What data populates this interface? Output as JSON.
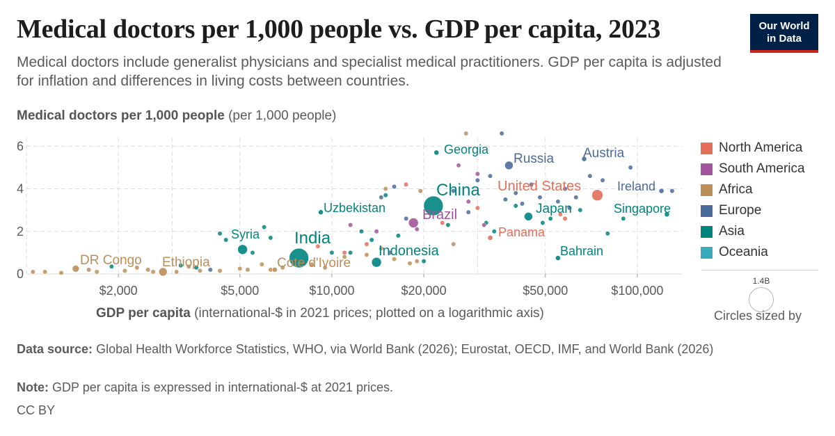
{
  "header": {
    "title": "Medical doctors per 1,000 people vs. GDP per capita, 2023",
    "subtitle": "Medical doctors include generalist physicians and specialist medical practitioners. GDP per capita is adjusted for inflation and differences in living costs between countries.",
    "logo_line1": "Our World",
    "logo_line2": "in Data"
  },
  "footer": {
    "source_label": "Data source:",
    "source_text": "Global Health Workforce Statistics, WHO, via World Bank (2026); Eurostat, OECD, IMF, and World Bank (2026)",
    "note_label": "Note:",
    "note_text": "GDP per capita is expressed in international-$ at 2021 prices.",
    "license": "CC BY"
  },
  "size_legend": {
    "value_label": "1.4B",
    "caption": "Circles sized by"
  },
  "colors": {
    "North America": "#e56e5a",
    "South America": "#a2559c",
    "Africa": "#bc8e5a",
    "Europe": "#4c6a9c",
    "Asia": "#00847e",
    "Oceania": "#38aaba",
    "grid": "#dddddd"
  },
  "chart_data": {
    "type": "scatter",
    "title": "Medical doctors per 1,000 people vs. GDP per capita, 2023",
    "ylabel_bold": "Medical doctors per 1,000 people",
    "ylabel_unit": "(per 1,000 people)",
    "xlabel_bold": "GDP per capita",
    "xlabel_rest": "(international-$ in 2021 prices; plotted on a logarithmic axis)",
    "x_scale": "log",
    "xlim": [
      1000,
      140000
    ],
    "ylim": [
      0,
      6.4
    ],
    "x_ticks": [
      {
        "value": 2000,
        "label": "$2,000"
      },
      {
        "value": 5000,
        "label": "$5,000"
      },
      {
        "value": 10000,
        "label": "$10,000"
      },
      {
        "value": 20000,
        "label": "$20,000"
      },
      {
        "value": 50000,
        "label": "$50,000"
      },
      {
        "value": 100000,
        "label": "$100,000"
      }
    ],
    "y_ticks": [
      0,
      2,
      4,
      6
    ],
    "grid": true,
    "legend_position": "right",
    "legend": [
      "North America",
      "South America",
      "Africa",
      "Europe",
      "Asia",
      "Oceania"
    ],
    "labeled_points": [
      {
        "name": "Georgia",
        "region": "Asia",
        "x": 22000,
        "y": 5.7
      },
      {
        "name": "Russia",
        "region": "Europe",
        "x": 38000,
        "y": 5.1
      },
      {
        "name": "Austria",
        "region": "Europe",
        "x": 67000,
        "y": 5.4
      },
      {
        "name": "Ireland",
        "region": "Europe",
        "x": 120000,
        "y": 3.9
      },
      {
        "name": "China",
        "region": "Asia",
        "x": 21500,
        "y": 3.2
      },
      {
        "name": "United States",
        "region": "North America",
        "x": 74000,
        "y": 3.7
      },
      {
        "name": "Uzbekistan",
        "region": "Asia",
        "x": 9200,
        "y": 2.9
      },
      {
        "name": "Brazil",
        "region": "South America",
        "x": 18500,
        "y": 2.4
      },
      {
        "name": "Japan",
        "region": "Asia",
        "x": 44000,
        "y": 2.7
      },
      {
        "name": "Singapore",
        "region": "Asia",
        "x": 125000,
        "y": 2.8
      },
      {
        "name": "Panama",
        "region": "North America",
        "x": 33000,
        "y": 1.7
      },
      {
        "name": "Syria",
        "region": "Asia",
        "x": 5100,
        "y": 1.15
      },
      {
        "name": "India",
        "region": "Asia",
        "x": 7800,
        "y": 0.75
      },
      {
        "name": "Indonesia",
        "region": "Asia",
        "x": 14000,
        "y": 0.55
      },
      {
        "name": "Bahrain",
        "region": "Asia",
        "x": 55000,
        "y": 0.75
      },
      {
        "name": "DR Congo",
        "region": "Africa",
        "x": 1450,
        "y": 0.25
      },
      {
        "name": "Ethiopia",
        "region": "Africa",
        "x": 2800,
        "y": 0.1
      },
      {
        "name": "Cote d'Ivoire",
        "region": "Africa",
        "x": 6500,
        "y": 0.2
      }
    ],
    "other_points": [
      {
        "region": "Africa",
        "x": 1050,
        "y": 0.1
      },
      {
        "region": "Africa",
        "x": 1150,
        "y": 0.1
      },
      {
        "region": "Africa",
        "x": 1300,
        "y": 0.05
      },
      {
        "region": "Africa",
        "x": 1600,
        "y": 0.2
      },
      {
        "region": "Africa",
        "x": 1700,
        "y": 0.1
      },
      {
        "region": "Africa",
        "x": 2100,
        "y": 0.15
      },
      {
        "region": "Africa",
        "x": 2300,
        "y": 0.3
      },
      {
        "region": "Africa",
        "x": 2500,
        "y": 0.2
      },
      {
        "region": "Africa",
        "x": 2600,
        "y": 0.1
      },
      {
        "region": "Africa",
        "x": 3100,
        "y": 0.1
      },
      {
        "region": "Africa",
        "x": 3400,
        "y": 0.35
      },
      {
        "region": "Africa",
        "x": 3700,
        "y": 0.15
      },
      {
        "region": "Africa",
        "x": 4300,
        "y": 0.15
      },
      {
        "region": "Africa",
        "x": 5000,
        "y": 0.25
      },
      {
        "region": "Africa",
        "x": 5300,
        "y": 0.2
      },
      {
        "region": "Africa",
        "x": 5900,
        "y": 0.45
      },
      {
        "region": "Africa",
        "x": 6300,
        "y": 0.2
      },
      {
        "region": "Africa",
        "x": 6900,
        "y": 0.3
      },
      {
        "region": "Africa",
        "x": 7600,
        "y": 0.6
      },
      {
        "region": "Africa",
        "x": 8600,
        "y": 0.45
      },
      {
        "region": "Africa",
        "x": 9500,
        "y": 0.3
      },
      {
        "region": "Africa",
        "x": 11000,
        "y": 0.8
      },
      {
        "region": "Africa",
        "x": 13000,
        "y": 0.9
      },
      {
        "region": "Africa",
        "x": 14500,
        "y": 1.2
      },
      {
        "region": "Africa",
        "x": 16000,
        "y": 0.7
      },
      {
        "region": "Africa",
        "x": 18000,
        "y": 0.5
      },
      {
        "region": "Africa",
        "x": 19000,
        "y": 0.6
      },
      {
        "region": "Africa",
        "x": 25000,
        "y": 1.4
      },
      {
        "region": "Africa",
        "x": 15000,
        "y": 4.0
      },
      {
        "region": "Africa",
        "x": 19500,
        "y": 3.9
      },
      {
        "region": "Africa",
        "x": 27500,
        "y": 6.6
      },
      {
        "region": "Asia",
        "x": 1900,
        "y": 0.35
      },
      {
        "region": "Asia",
        "x": 3200,
        "y": 0.4
      },
      {
        "region": "Asia",
        "x": 3600,
        "y": 0.3
      },
      {
        "region": "Asia",
        "x": 4300,
        "y": 1.9
      },
      {
        "region": "Asia",
        "x": 4500,
        "y": 1.6
      },
      {
        "region": "Asia",
        "x": 5500,
        "y": 1.0
      },
      {
        "region": "Asia",
        "x": 6000,
        "y": 2.2
      },
      {
        "region": "Asia",
        "x": 6300,
        "y": 1.7
      },
      {
        "region": "Asia",
        "x": 10000,
        "y": 1.0
      },
      {
        "region": "Asia",
        "x": 11500,
        "y": 1.0
      },
      {
        "region": "Asia",
        "x": 12500,
        "y": 2.0
      },
      {
        "region": "Asia",
        "x": 13500,
        "y": 1.6
      },
      {
        "region": "Asia",
        "x": 15000,
        "y": 3.7
      },
      {
        "region": "Asia",
        "x": 16500,
        "y": 1.8
      },
      {
        "region": "Asia",
        "x": 20000,
        "y": 0.6
      },
      {
        "region": "Asia",
        "x": 24000,
        "y": 2.3
      },
      {
        "region": "Asia",
        "x": 32000,
        "y": 2.4
      },
      {
        "region": "Asia",
        "x": 34000,
        "y": 2.0
      },
      {
        "region": "Asia",
        "x": 40000,
        "y": 3.2
      },
      {
        "region": "Asia",
        "x": 49000,
        "y": 2.4
      },
      {
        "region": "Asia",
        "x": 52000,
        "y": 2.6
      },
      {
        "region": "Asia",
        "x": 65000,
        "y": 3.0
      },
      {
        "region": "Asia",
        "x": 80000,
        "y": 1.9
      },
      {
        "region": "Asia",
        "x": 90000,
        "y": 2.6
      },
      {
        "region": "Europe",
        "x": 4000,
        "y": 0.2
      },
      {
        "region": "Europe",
        "x": 14500,
        "y": 3.6
      },
      {
        "region": "Europe",
        "x": 16000,
        "y": 4.1
      },
      {
        "region": "Europe",
        "x": 17500,
        "y": 2.6
      },
      {
        "region": "Europe",
        "x": 25000,
        "y": 3.9
      },
      {
        "region": "Europe",
        "x": 28000,
        "y": 2.9
      },
      {
        "region": "Europe",
        "x": 30000,
        "y": 4.4
      },
      {
        "region": "Europe",
        "x": 33000,
        "y": 4.6
      },
      {
        "region": "Europe",
        "x": 36000,
        "y": 6.6
      },
      {
        "region": "Europe",
        "x": 37000,
        "y": 3.5
      },
      {
        "region": "Europe",
        "x": 40000,
        "y": 3.8
      },
      {
        "region": "Europe",
        "x": 42000,
        "y": 3.3
      },
      {
        "region": "Europe",
        "x": 45000,
        "y": 4.2
      },
      {
        "region": "Europe",
        "x": 48000,
        "y": 3.6
      },
      {
        "region": "Europe",
        "x": 55000,
        "y": 3.4
      },
      {
        "region": "Europe",
        "x": 58000,
        "y": 4.0
      },
      {
        "region": "Europe",
        "x": 60000,
        "y": 3.1
      },
      {
        "region": "Europe",
        "x": 63000,
        "y": 3.6
      },
      {
        "region": "Europe",
        "x": 70000,
        "y": 4.6
      },
      {
        "region": "Europe",
        "x": 77000,
        "y": 4.4
      },
      {
        "region": "Europe",
        "x": 95000,
        "y": 5.0
      },
      {
        "region": "Europe",
        "x": 130000,
        "y": 3.9
      },
      {
        "region": "North America",
        "x": 9000,
        "y": 1.3
      },
      {
        "region": "North America",
        "x": 11000,
        "y": 1.0
      },
      {
        "region": "North America",
        "x": 13000,
        "y": 1.4
      },
      {
        "region": "North America",
        "x": 17500,
        "y": 4.2
      },
      {
        "region": "North America",
        "x": 23000,
        "y": 2.4
      },
      {
        "region": "North America",
        "x": 30000,
        "y": 3.1
      },
      {
        "region": "North America",
        "x": 56000,
        "y": 2.8
      },
      {
        "region": "North America",
        "x": 58000,
        "y": 2.6
      },
      {
        "region": "South America",
        "x": 11500,
        "y": 2.3
      },
      {
        "region": "South America",
        "x": 14000,
        "y": 2.0
      },
      {
        "region": "South America",
        "x": 15500,
        "y": 1.0
      },
      {
        "region": "South America",
        "x": 19000,
        "y": 2.1
      },
      {
        "region": "South America",
        "x": 26000,
        "y": 5.1
      },
      {
        "region": "South America",
        "x": 28000,
        "y": 3.4
      },
      {
        "region": "South America",
        "x": 30000,
        "y": 4.7
      },
      {
        "region": "South America",
        "x": 31500,
        "y": 2.3
      }
    ]
  }
}
